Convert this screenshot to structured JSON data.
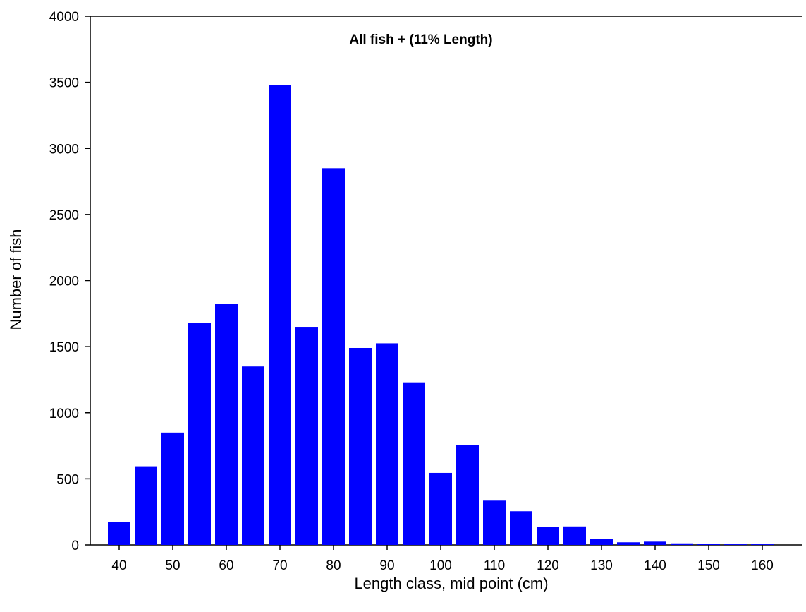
{
  "chart_data": {
    "type": "bar",
    "title": "All fish + (11% Length)",
    "xlabel": "Length class, mid point (cm)",
    "ylabel": "Number of fish",
    "ylim": [
      0,
      4000
    ],
    "yticks": [
      "0",
      "500",
      "1000",
      "1500",
      "2000",
      "2500",
      "3000",
      "3500",
      "4000"
    ],
    "xticks": [
      "40",
      "50",
      "60",
      "70",
      "80",
      "90",
      "100",
      "110",
      "120",
      "130",
      "140",
      "150",
      "160"
    ],
    "categories": [
      40,
      45,
      50,
      55,
      60,
      65,
      70,
      75,
      80,
      85,
      90,
      95,
      100,
      105,
      110,
      115,
      120,
      125,
      130,
      135,
      140,
      145,
      150,
      155,
      160
    ],
    "values": [
      175,
      595,
      850,
      1680,
      1825,
      1350,
      3480,
      1650,
      2850,
      1490,
      1525,
      1230,
      545,
      755,
      335,
      255,
      135,
      140,
      45,
      20,
      25,
      12,
      10,
      5,
      5
    ],
    "bar_color": "#0000FF",
    "grid": false
  }
}
